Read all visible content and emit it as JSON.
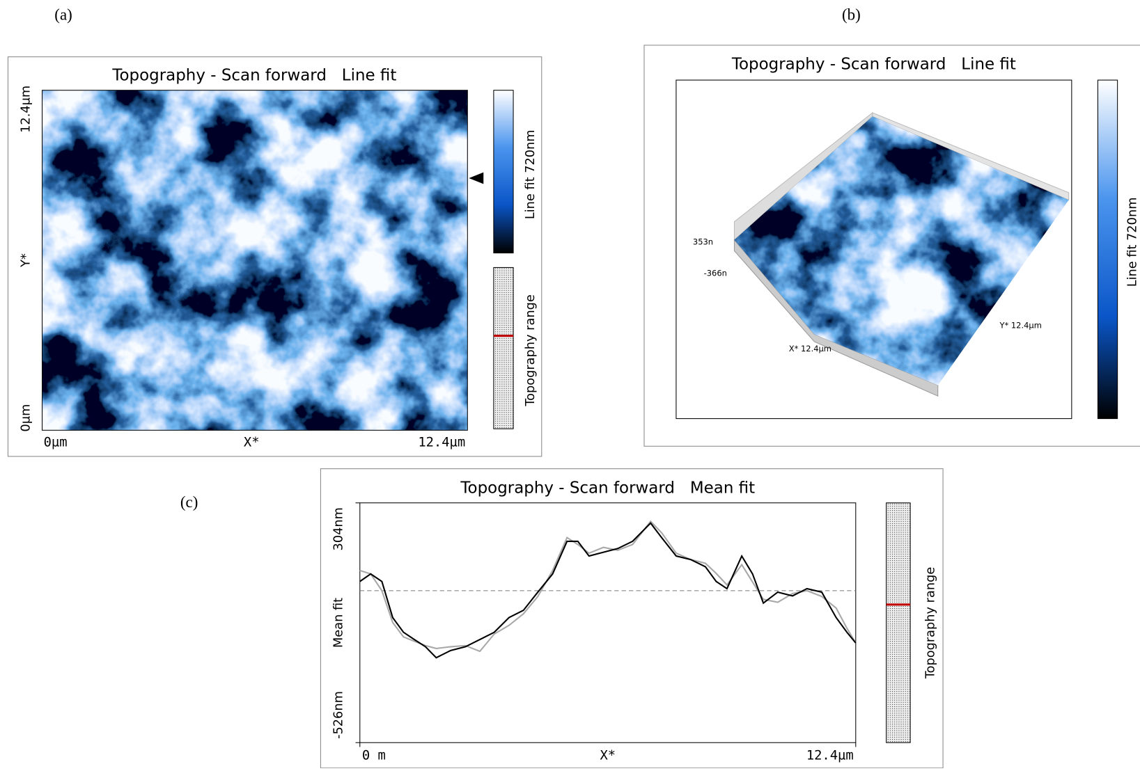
{
  "panels": {
    "a": {
      "label": "(a)",
      "title": "Topography - Scan forward   Line fit",
      "y_top": "12.4µm",
      "y_axis": "Y*",
      "y_bottom": "0µm",
      "x_left": "0µm",
      "x_axis": "X*",
      "x_right": "12.4µm",
      "colorbar": "Line fit 720nm",
      "range": "Topography range"
    },
    "b": {
      "label": "(b)",
      "title": "Topography - Scan forward   Line fit",
      "z_top": "353n",
      "z_bottom": "-366n",
      "x_label": "X* 12.4µm",
      "y_label": "Y* 12.4µm",
      "colorbar": "Line fit 720nm"
    },
    "c": {
      "label": "(c)",
      "range": "Topography range"
    }
  },
  "chart_data": {
    "type": "line",
    "title": "Topography - Scan forward   Mean fit",
    "x_label": "X*",
    "y_label": "Mean fit",
    "x": [
      0,
      0.27,
      0.55,
      0.82,
      1.09,
      1.36,
      1.64,
      1.91,
      2.27,
      2.64,
      3.0,
      3.36,
      3.73,
      4.09,
      4.45,
      4.82,
      5.18,
      5.45,
      5.73,
      6.09,
      6.45,
      6.82,
      7.27,
      7.55,
      7.91,
      8.27,
      8.64,
      8.91,
      9.18,
      9.55,
      9.82,
      10.09,
      10.45,
      10.82,
      11.18,
      11.55,
      11.91,
      12.18,
      12.4
    ],
    "series": [
      {
        "color": "#a8a8a8",
        "values": [
          70,
          58,
          0,
          -110,
          -160,
          -175,
          -190,
          -200,
          -194,
          -190,
          -210,
          -150,
          -120,
          -80,
          -20,
          70,
          184,
          160,
          130,
          150,
          140,
          160,
          240,
          200,
          130,
          108,
          95,
          60,
          20,
          90,
          30,
          -30,
          -40,
          -10,
          0,
          -20,
          -60,
          -130,
          -181
        ]
      },
      {
        "color": "#000000",
        "values": [
          32,
          58,
          32,
          -93,
          -144,
          -169,
          -194,
          -232,
          -207,
          -194,
          -169,
          -144,
          -93,
          -68,
          -5,
          58,
          171,
          171,
          120,
          133,
          146,
          171,
          234,
          183,
          120,
          108,
          83,
          32,
          7,
          120,
          58,
          -43,
          -5,
          -18,
          7,
          -5,
          -93,
          -144,
          -181
        ]
      }
    ],
    "xlim": [
      0,
      12.4
    ],
    "ylim": [
      -526,
      304
    ],
    "xticks": [
      {
        "value": 0,
        "label": "0 m"
      },
      {
        "value": 12.4,
        "label": "12.4µm"
      }
    ],
    "yticks": [
      {
        "value": 304,
        "label": "304nm"
      },
      {
        "value": -526,
        "label": "-526nm"
      }
    ]
  }
}
